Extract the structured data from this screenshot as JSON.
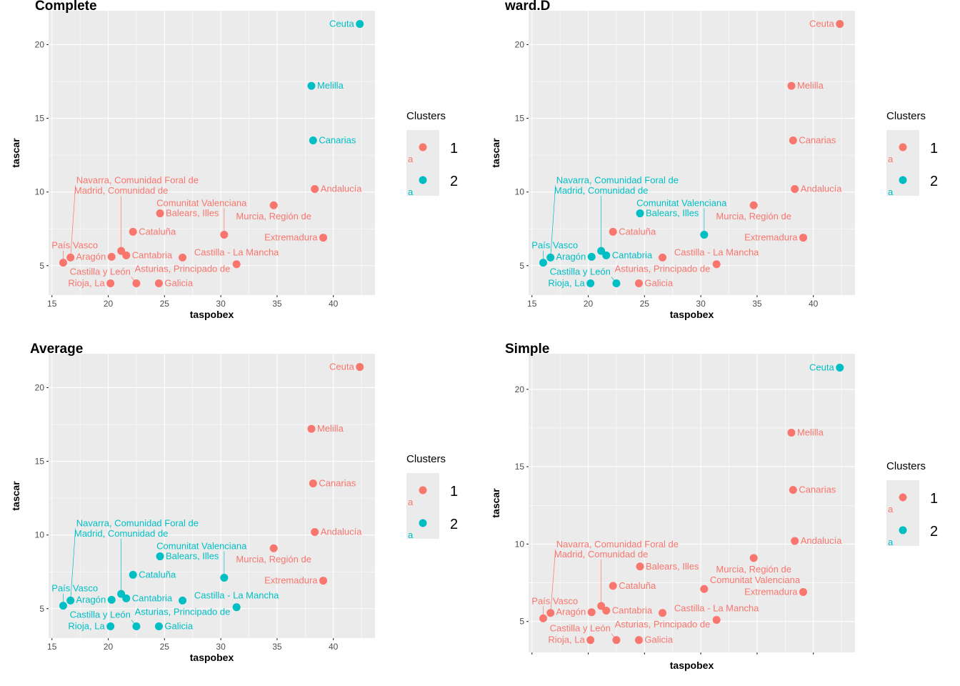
{
  "colors": {
    "1": "#F8766D",
    "2": "#00BFC4",
    "panel_bg": "#EBEBEB",
    "grid": "#FFFFFF"
  },
  "chart_data": [
    {
      "type": "scatter",
      "title": "Complete",
      "xlabel": "taspobex",
      "ylabel": "tascar",
      "xlim": [
        14.7,
        43.7
      ],
      "ylim": [
        3.0,
        22.3
      ],
      "xticks": [
        15,
        20,
        25,
        30,
        35,
        40
      ],
      "yticks": [
        5,
        10,
        15,
        20
      ],
      "show_xtick_labels": true,
      "grid": true,
      "legend": {
        "title": "Clusters",
        "entries": [
          "1",
          "2"
        ],
        "key_glyph": "a",
        "placement": "right"
      },
      "clusters": [
        1,
        1,
        1,
        1,
        2,
        1,
        1,
        1,
        1,
        1,
        1,
        1,
        1,
        1,
        1,
        1,
        1,
        2,
        2
      ]
    },
    {
      "type": "scatter",
      "title": "ward.D",
      "xlabel": "taspobex",
      "ylabel": "tascar",
      "xlim": [
        14.7,
        43.7
      ],
      "ylim": [
        3.0,
        22.3
      ],
      "xticks": [
        15,
        20,
        25,
        30,
        35,
        40
      ],
      "yticks": [
        5,
        10,
        15,
        20
      ],
      "show_xtick_labels": true,
      "grid": true,
      "legend": {
        "title": "Clusters",
        "entries": [
          "1",
          "2"
        ],
        "key_glyph": "a",
        "placement": "right"
      },
      "clusters": [
        1,
        2,
        1,
        2,
        1,
        2,
        2,
        1,
        1,
        2,
        1,
        1,
        2,
        1,
        2,
        2,
        2,
        1,
        1
      ]
    },
    {
      "type": "scatter",
      "title": "Average",
      "xlabel": "taspobex",
      "ylabel": "tascar",
      "xlim": [
        14.7,
        43.7
      ],
      "ylim": [
        3.0,
        22.3
      ],
      "xticks": [
        15,
        20,
        25,
        30,
        35,
        40
      ],
      "yticks": [
        5,
        10,
        15,
        20
      ],
      "show_xtick_labels": true,
      "grid": true,
      "legend": {
        "title": "Clusters",
        "entries": [
          "1",
          "2"
        ],
        "key_glyph": "a",
        "placement": "right"
      },
      "clusters": [
        1,
        2,
        2,
        2,
        1,
        2,
        2,
        2,
        2,
        2,
        1,
        2,
        2,
        1,
        2,
        2,
        2,
        1,
        1
      ]
    },
    {
      "type": "scatter",
      "title": "Simple",
      "xlabel": "taspobex",
      "ylabel": "tascar",
      "xlim": [
        14.7,
        43.7
      ],
      "ylim": [
        3.0,
        22.3
      ],
      "xticks": [
        15,
        20,
        25,
        30,
        35,
        40
      ],
      "yticks": [
        5,
        10,
        15,
        20
      ],
      "show_xtick_labels": false,
      "grid": true,
      "legend": {
        "title": "Clusters",
        "entries": [
          "1",
          "2"
        ],
        "key_glyph": "a",
        "placement": "right"
      },
      "clusters": [
        1,
        1,
        1,
        1,
        1,
        1,
        1,
        1,
        1,
        1,
        1,
        1,
        1,
        1,
        1,
        1,
        1,
        2,
        1
      ]
    }
  ],
  "points": [
    {
      "label": "Andalucía",
      "x": 38.35,
      "y": 10.2
    },
    {
      "label": "Aragón",
      "x": 20.3,
      "y": 5.6
    },
    {
      "label": "Asturias, Principado de",
      "x": 26.6,
      "y": 5.55
    },
    {
      "label": "Balears, Illes",
      "x": 24.6,
      "y": 8.55
    },
    {
      "label": "Canarias",
      "x": 38.2,
      "y": 13.5
    },
    {
      "label": "Cantabria",
      "x": 21.6,
      "y": 5.7
    },
    {
      "label": "Castilla y León",
      "x": 22.5,
      "y": 3.8
    },
    {
      "label": "Castilla - La Mancha",
      "x": 31.4,
      "y": 5.1
    },
    {
      "label": "Cataluña",
      "x": 22.2,
      "y": 7.3
    },
    {
      "label": "Comunitat Valenciana",
      "x": 30.3,
      "y": 7.1
    },
    {
      "label": "Extremadura",
      "x": 39.1,
      "y": 6.9
    },
    {
      "label": "Galicia",
      "x": 24.5,
      "y": 3.8
    },
    {
      "label": "Madrid, Comunidad de",
      "x": 21.15,
      "y": 6.0
    },
    {
      "label": "Murcia, Región de",
      "x": 34.7,
      "y": 9.1
    },
    {
      "label": "Navarra, Comunidad Foral de",
      "x": 16.65,
      "y": 5.55
    },
    {
      "label": "País Vasco",
      "x": 16.0,
      "y": 5.2
    },
    {
      "label": "Rioja, La",
      "x": 20.2,
      "y": 3.8
    },
    {
      "label": "Ceuta",
      "x": 42.35,
      "y": 21.4
    },
    {
      "label": "Melilla",
      "x": 38.05,
      "y": 17.2
    }
  ]
}
